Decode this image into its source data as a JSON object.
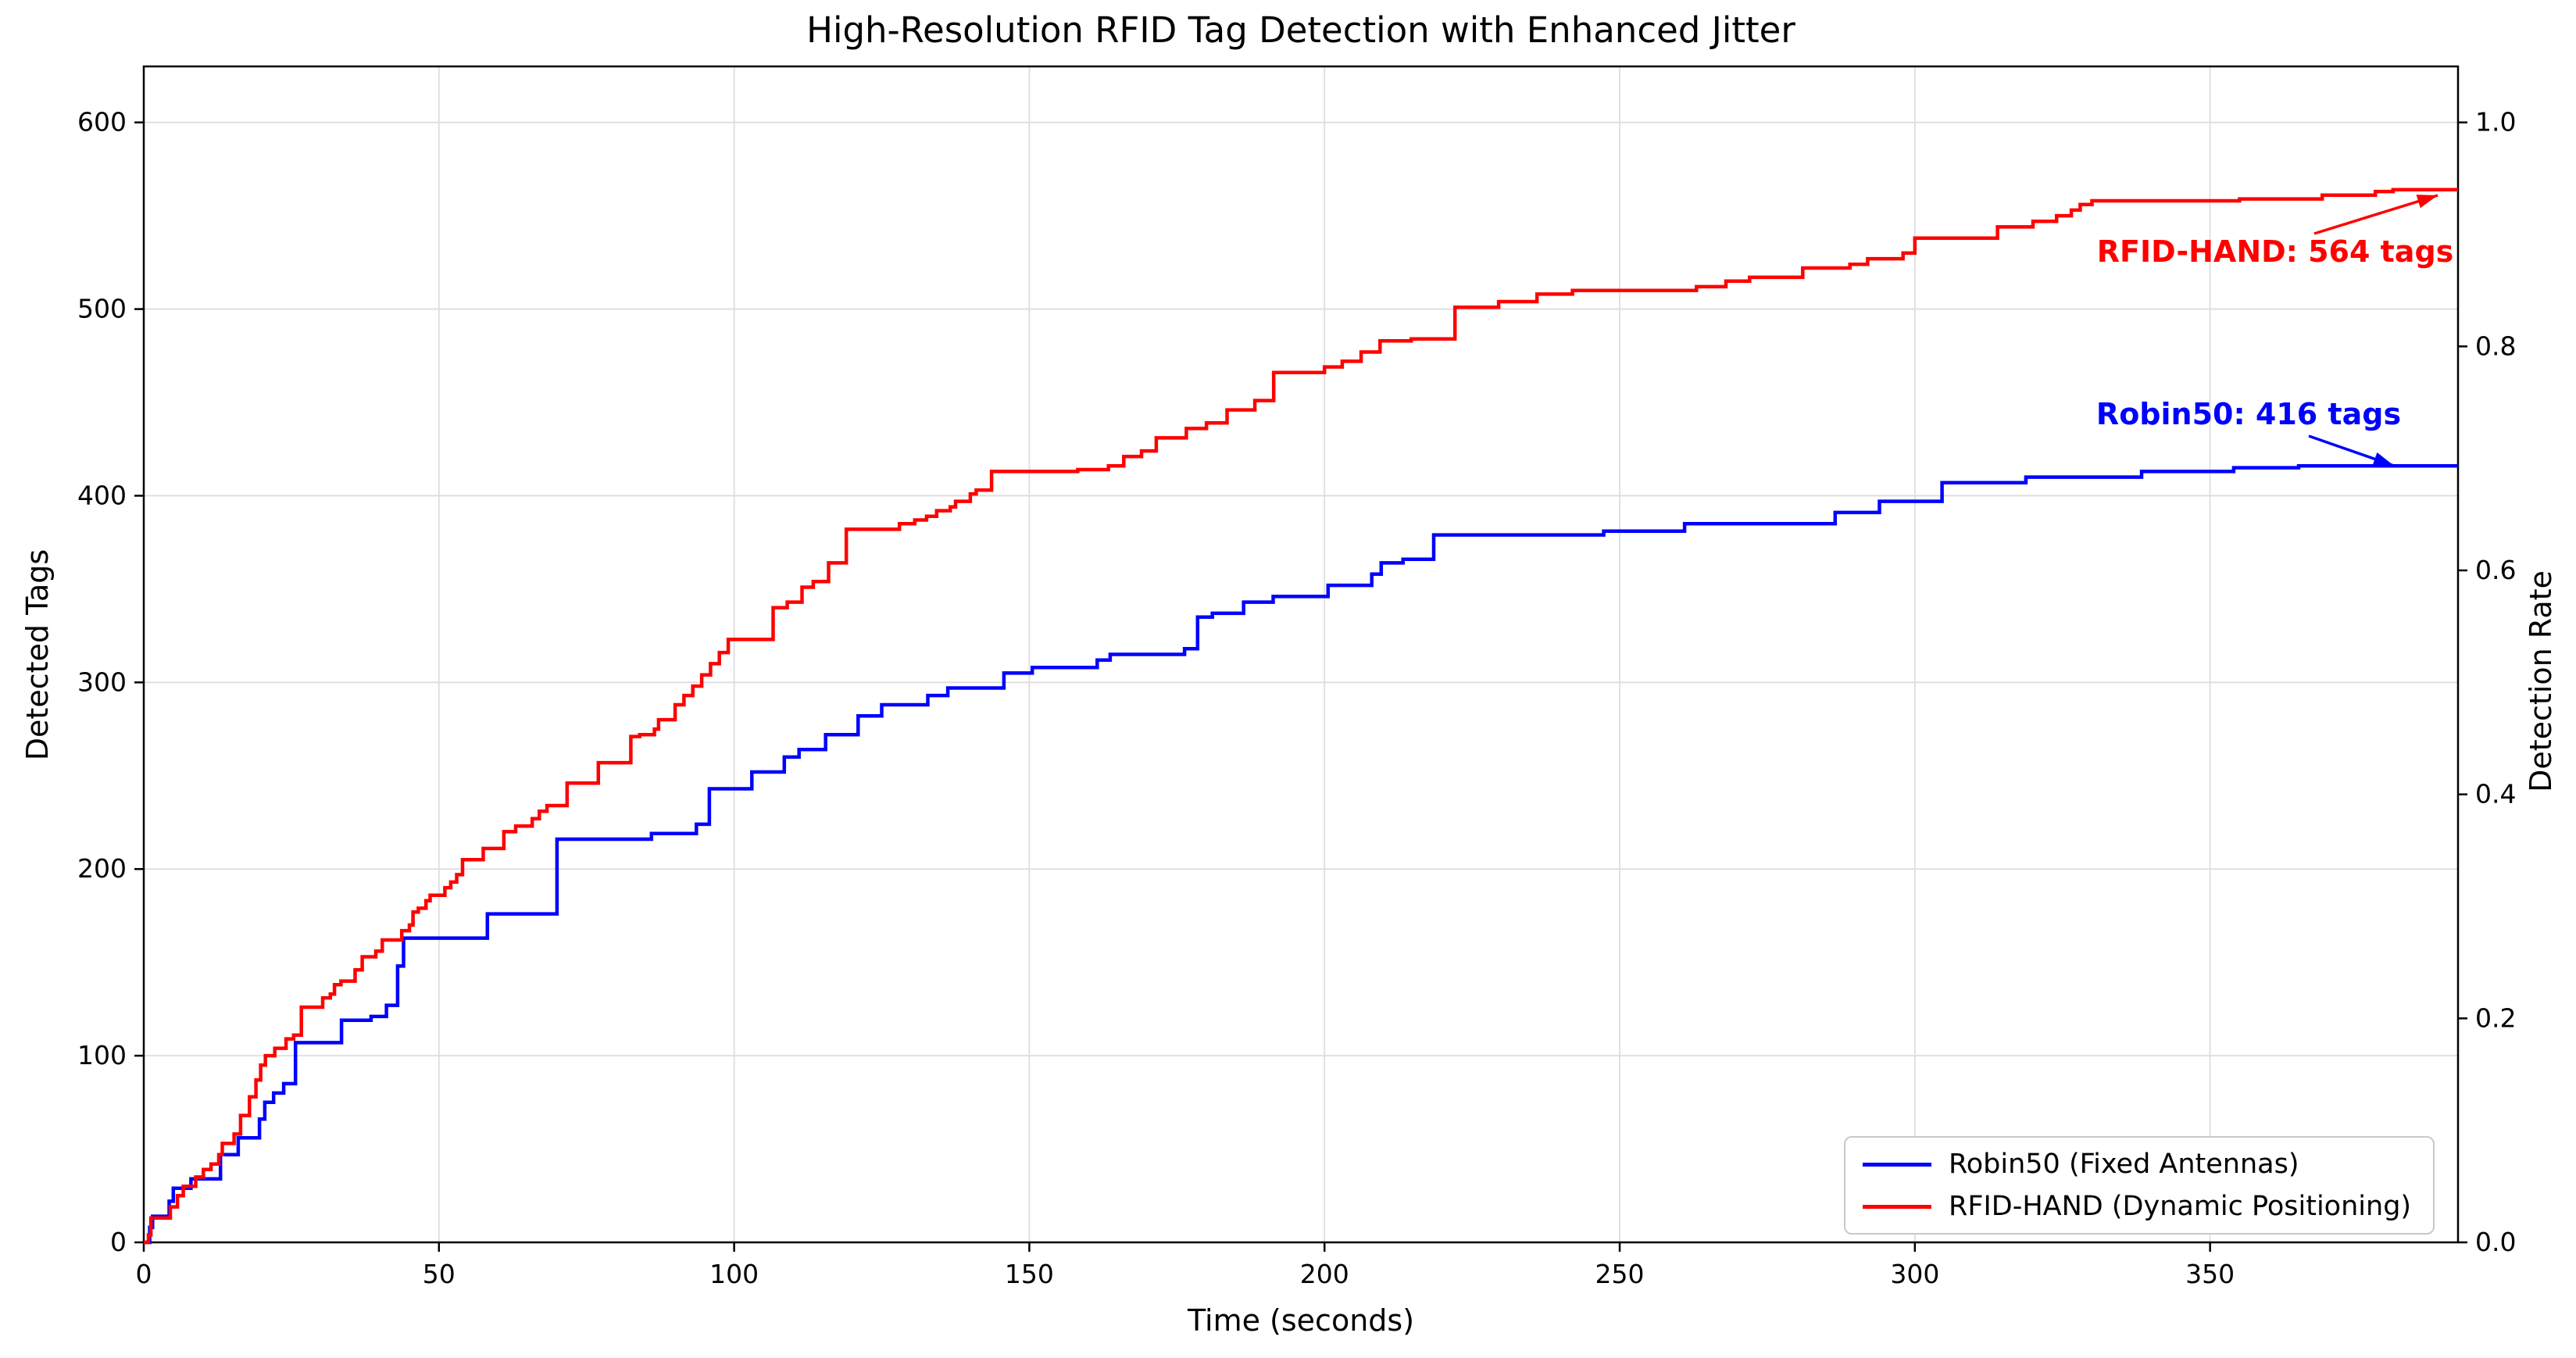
{
  "title": "High-Resolution RFID Tag Detection with Enhanced Jitter",
  "axes": {
    "xlabel": "Time (seconds)",
    "ylabel_left": "Detected Tags",
    "ylabel_right": "Detection Rate",
    "x_ticks": [
      0,
      50,
      100,
      150,
      200,
      250,
      300,
      350
    ],
    "y_ticks_left": [
      0,
      100,
      200,
      300,
      400,
      500,
      600
    ],
    "y_ticks_right": [
      "0.0",
      "0.2",
      "0.4",
      "0.6",
      "0.8",
      "1.0"
    ],
    "xlim": [
      0,
      392
    ],
    "ylim_left": [
      0,
      630
    ],
    "ylim_right": [
      0,
      1.05
    ],
    "grid": true
  },
  "colors": {
    "robin50": "#0000ff",
    "rfid_hand": "#ff0000",
    "grid": "#dedede",
    "spine": "#000000",
    "text": "#000000"
  },
  "legend": {
    "position": "lower right",
    "entries": [
      {
        "label": "Robin50 (Fixed Antennas)",
        "color": "#0000ff"
      },
      {
        "label": "RFID-HAND (Dynamic Positioning)",
        "color": "#ff0000"
      }
    ]
  },
  "annotations": [
    {
      "name": "rfid-hand-final",
      "text": "RFID-HAND: 564 tags",
      "color": "#ff0000",
      "arrow_from": [
        2962,
        299
      ],
      "arrow_to": [
        3120,
        250
      ]
    },
    {
      "name": "robin50-final",
      "text": "Robin50: 416 tags",
      "color": "#0000ff",
      "arrow_from": [
        2955,
        558
      ],
      "arrow_to": [
        3064,
        596
      ]
    }
  ],
  "chart_data": {
    "type": "line",
    "step_mode": "post",
    "title": "High-Resolution RFID Tag Detection with Enhanced Jitter",
    "xlabel": "Time (seconds)",
    "ylabel": "Detected Tags",
    "ylabel2": "Detection Rate",
    "legend_position": "lower right",
    "grid": true,
    "x_range": [
      0,
      392
    ],
    "y_range_tags": [
      0,
      630
    ],
    "y_range_rate": [
      0,
      1.05
    ],
    "rate_equals_tags_over": 600,
    "series": [
      {
        "name": "Robin50 (Fixed Antennas)",
        "color": "#0000ff",
        "final_value": 416,
        "points": [
          [
            0,
            0
          ],
          [
            1,
            8
          ],
          [
            1.5,
            14
          ],
          [
            4.3,
            22
          ],
          [
            5,
            29
          ],
          [
            8,
            34
          ],
          [
            13,
            47
          ],
          [
            16,
            56
          ],
          [
            19.6,
            66
          ],
          [
            20.5,
            75
          ],
          [
            22,
            80
          ],
          [
            23.7,
            85
          ],
          [
            25.7,
            107
          ],
          [
            33.5,
            119
          ],
          [
            38.5,
            121
          ],
          [
            41.1,
            127
          ],
          [
            43,
            148
          ],
          [
            44,
            163
          ],
          [
            58.2,
            176
          ],
          [
            70,
            216
          ],
          [
            86,
            219
          ],
          [
            93.6,
            224
          ],
          [
            95.8,
            243
          ],
          [
            103,
            252
          ],
          [
            108.5,
            260
          ],
          [
            111,
            264
          ],
          [
            115.5,
            272
          ],
          [
            121,
            282
          ],
          [
            125,
            288
          ],
          [
            132.8,
            293
          ],
          [
            136.2,
            297
          ],
          [
            145.7,
            305
          ],
          [
            150.5,
            308
          ],
          [
            161.5,
            312
          ],
          [
            163.7,
            315
          ],
          [
            176.3,
            318
          ],
          [
            178.5,
            335
          ],
          [
            181,
            337
          ],
          [
            186.3,
            343
          ],
          [
            191.3,
            346
          ],
          [
            200.6,
            352
          ],
          [
            208,
            358
          ],
          [
            209.6,
            364
          ],
          [
            213.3,
            366
          ],
          [
            218.5,
            379
          ],
          [
            247.3,
            381
          ],
          [
            261,
            385
          ],
          [
            286.5,
            391
          ],
          [
            294,
            397
          ],
          [
            304.6,
            407
          ],
          [
            318.8,
            410
          ],
          [
            338.4,
            413
          ],
          [
            354,
            415
          ],
          [
            365,
            416
          ],
          [
            392,
            416
          ]
        ]
      },
      {
        "name": "RFID-HAND (Dynamic Positioning)",
        "color": "#ff0000",
        "final_value": 564,
        "points": [
          [
            0,
            0
          ],
          [
            0.8,
            4
          ],
          [
            1.2,
            13
          ],
          [
            4.5,
            19
          ],
          [
            5.7,
            25
          ],
          [
            6.7,
            30
          ],
          [
            8.8,
            35
          ],
          [
            10.1,
            39
          ],
          [
            11.4,
            42
          ],
          [
            12.7,
            47
          ],
          [
            13.3,
            53
          ],
          [
            15.3,
            58
          ],
          [
            16.4,
            68
          ],
          [
            17.9,
            78
          ],
          [
            19,
            87
          ],
          [
            19.8,
            95
          ],
          [
            20.6,
            100
          ],
          [
            22.2,
            104
          ],
          [
            24.1,
            109
          ],
          [
            25.4,
            111
          ],
          [
            26.7,
            126
          ],
          [
            30.3,
            131
          ],
          [
            31.6,
            133
          ],
          [
            32.3,
            138
          ],
          [
            33.4,
            140
          ],
          [
            35.8,
            146
          ],
          [
            37,
            153
          ],
          [
            39.3,
            156
          ],
          [
            40.4,
            162
          ],
          [
            43.7,
            167
          ],
          [
            45,
            170
          ],
          [
            45.6,
            177
          ],
          [
            46.5,
            179
          ],
          [
            47.8,
            183
          ],
          [
            48.5,
            186
          ],
          [
            51,
            190
          ],
          [
            52,
            193
          ],
          [
            53,
            197
          ],
          [
            54,
            205
          ],
          [
            57.5,
            211
          ],
          [
            61,
            220
          ],
          [
            63,
            223
          ],
          [
            65.8,
            227
          ],
          [
            67,
            231
          ],
          [
            68.3,
            234
          ],
          [
            71.7,
            246
          ],
          [
            77,
            257
          ],
          [
            82.5,
            271
          ],
          [
            84,
            272
          ],
          [
            86.5,
            275
          ],
          [
            87.2,
            280
          ],
          [
            90,
            288
          ],
          [
            91.5,
            293
          ],
          [
            93,
            298
          ],
          [
            94.5,
            304
          ],
          [
            96,
            310
          ],
          [
            97.5,
            316
          ],
          [
            99,
            323
          ],
          [
            106.6,
            340
          ],
          [
            109,
            343
          ],
          [
            111.5,
            351
          ],
          [
            113.4,
            354
          ],
          [
            116,
            364
          ],
          [
            119,
            382
          ],
          [
            128,
            385
          ],
          [
            130.6,
            387
          ],
          [
            132.6,
            389
          ],
          [
            134.3,
            392
          ],
          [
            136.6,
            394
          ],
          [
            137.5,
            397
          ],
          [
            140,
            401
          ],
          [
            141,
            403
          ],
          [
            143.6,
            413
          ],
          [
            158.2,
            414
          ],
          [
            163.4,
            416
          ],
          [
            166,
            421
          ],
          [
            169,
            424
          ],
          [
            171.5,
            431
          ],
          [
            176.6,
            436
          ],
          [
            180,
            439
          ],
          [
            183.5,
            446
          ],
          [
            188.2,
            451
          ],
          [
            191.4,
            466
          ],
          [
            200,
            469
          ],
          [
            203,
            472
          ],
          [
            206.2,
            477
          ],
          [
            209.4,
            483
          ],
          [
            214.7,
            484
          ],
          [
            222.1,
            501
          ],
          [
            229.5,
            504
          ],
          [
            236,
            508
          ],
          [
            242,
            510
          ],
          [
            263,
            512
          ],
          [
            268,
            515
          ],
          [
            272,
            517
          ],
          [
            281,
            522
          ],
          [
            289,
            524
          ],
          [
            292,
            527
          ],
          [
            298,
            530
          ],
          [
            300,
            538
          ],
          [
            314,
            544
          ],
          [
            320,
            547
          ],
          [
            324,
            550
          ],
          [
            326.5,
            553
          ],
          [
            328,
            556
          ],
          [
            330,
            558
          ],
          [
            355,
            559
          ],
          [
            369,
            561
          ],
          [
            378,
            563
          ],
          [
            381,
            564
          ],
          [
            392,
            564
          ]
        ]
      }
    ]
  }
}
